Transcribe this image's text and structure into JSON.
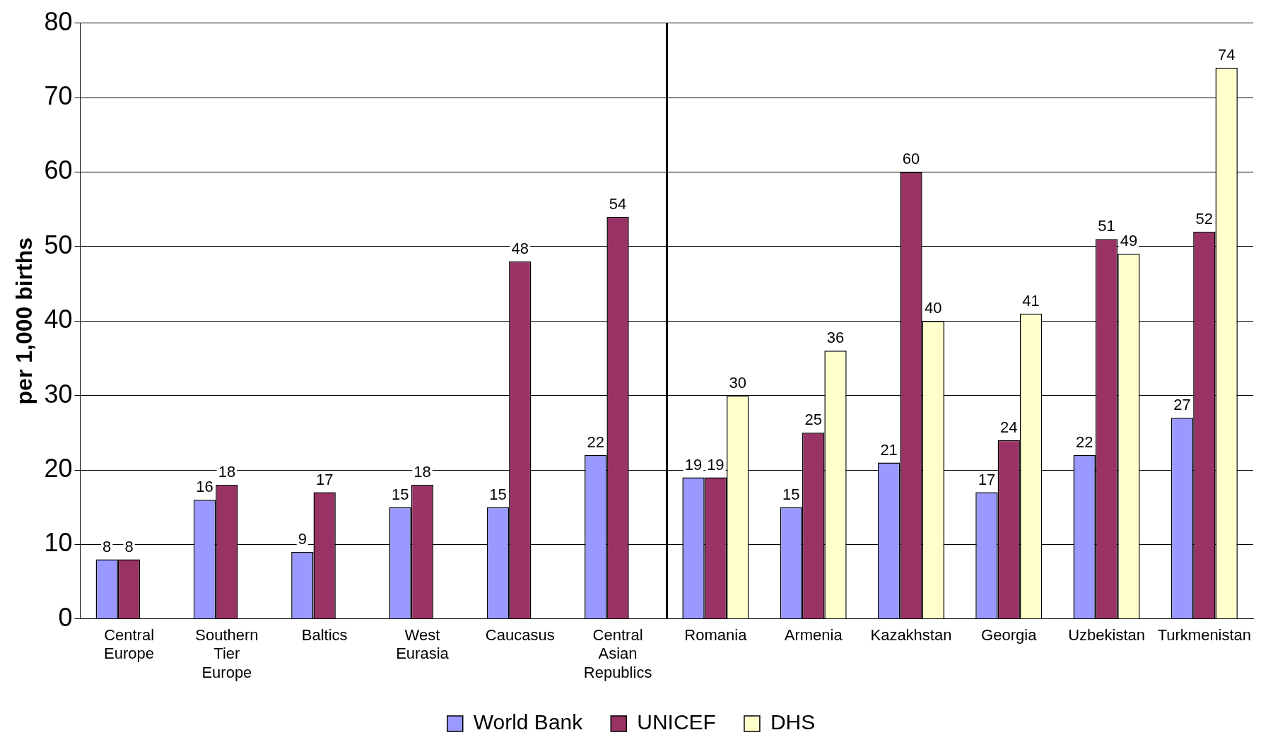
{
  "chart_data": {
    "type": "bar",
    "ylabel": "per 1,000 births",
    "categories": [
      "Central Europe",
      "Southern Tier Europe",
      "Baltics",
      "West Eurasia",
      "Caucasus",
      "Central Asian Republics",
      "Romania",
      "Armenia",
      "Kazakhstan",
      "Georgia",
      "Uzbekistan",
      "Turkmenistan"
    ],
    "series": [
      {
        "name": "World Bank",
        "color": "#9999ff",
        "values": [
          8,
          16,
          9,
          15,
          15,
          22,
          19,
          15,
          21,
          17,
          22,
          27
        ]
      },
      {
        "name": "UNICEF",
        "color": "#993366",
        "values": [
          8,
          18,
          17,
          18,
          48,
          54,
          19,
          25,
          60,
          24,
          51,
          52
        ]
      },
      {
        "name": "DHS",
        "color": "#ffffcc",
        "values": [
          null,
          null,
          null,
          null,
          null,
          null,
          30,
          36,
          40,
          41,
          49,
          74
        ]
      }
    ],
    "ylim": [
      0,
      80
    ],
    "yticks": [
      0,
      10,
      20,
      30,
      40,
      50,
      60,
      70,
      80
    ],
    "grid": "y",
    "legend": "bottom",
    "data_labels": true
  }
}
